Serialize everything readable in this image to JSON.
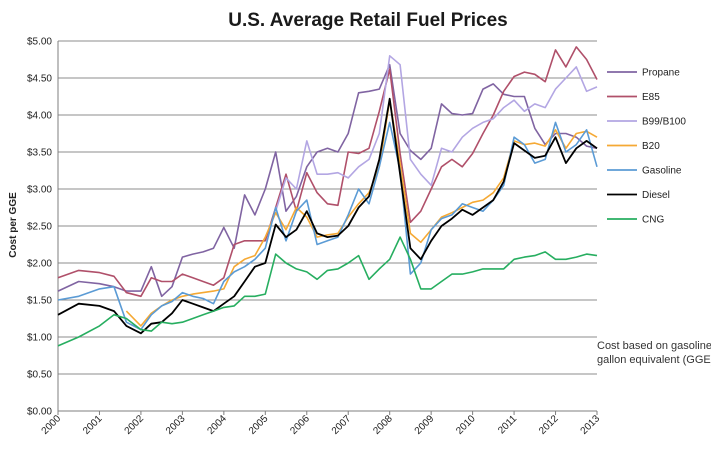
{
  "chart_data": {
    "type": "line",
    "title": "U.S. Average Retail Fuel Prices",
    "xlabel": "",
    "ylabel": "Cost per GGE",
    "xlim": [
      2000,
      2013
    ],
    "ylim": [
      0,
      5
    ],
    "y_ticks": [
      "$0.00",
      "$0.50",
      "$1.00",
      "$1.50",
      "$2.00",
      "$2.50",
      "$3.00",
      "$3.50",
      "$4.00",
      "$4.50",
      "$5.00"
    ],
    "x_ticks": [
      "2000",
      "2001",
      "2002",
      "2003",
      "2004",
      "2005",
      "2006",
      "2007",
      "2008",
      "2009",
      "2010",
      "2011",
      "2012",
      "2013"
    ],
    "grid": "horizontal",
    "legend_position": "right",
    "annotation": [
      "Cost based on gasoline",
      "gallon equivalent (GGE)"
    ],
    "series": [
      {
        "name": "Propane",
        "color": "#8064a2",
        "x": [
          2000,
          2000.5,
          2001,
          2001.35,
          2001.65,
          2002,
          2002.25,
          2002.5,
          2002.75,
          2003,
          2003.25,
          2003.5,
          2003.75,
          2004,
          2004.25,
          2004.5,
          2004.75,
          2005,
          2005.25,
          2005.5,
          2005.75,
          2006,
          2006.25,
          2006.5,
          2006.75,
          2007,
          2007.25,
          2007.5,
          2007.75,
          2008,
          2008.25,
          2008.5,
          2008.75,
          2009,
          2009.25,
          2009.5,
          2009.75,
          2010,
          2010.25,
          2010.5,
          2010.75,
          2011,
          2011.25,
          2011.5,
          2011.75,
          2012,
          2012.25,
          2012.5,
          2012.75,
          2013
        ],
        "y": [
          1.62,
          1.75,
          1.72,
          1.68,
          1.62,
          1.62,
          1.95,
          1.55,
          1.68,
          2.08,
          2.12,
          2.15,
          2.2,
          2.48,
          2.2,
          2.92,
          2.65,
          3.0,
          3.5,
          2.7,
          2.9,
          3.3,
          3.5,
          3.55,
          3.5,
          3.75,
          4.3,
          4.32,
          4.35,
          4.68,
          3.75,
          3.52,
          3.4,
          3.55,
          4.15,
          4.02,
          4.0,
          4.02,
          4.35,
          4.42,
          4.28,
          4.25,
          4.25,
          3.82,
          3.6,
          3.75,
          3.75,
          3.7,
          3.58,
          3.55
        ]
      },
      {
        "name": "E85",
        "color": "#b0506a",
        "x": [
          2000,
          2000.5,
          2001,
          2001.35,
          2001.65,
          2002,
          2002.25,
          2002.5,
          2002.75,
          2003,
          2003.25,
          2003.5,
          2003.75,
          2004,
          2004.25,
          2004.5,
          2004.75,
          2005,
          2005.25,
          2005.5,
          2005.75,
          2006,
          2006.25,
          2006.5,
          2006.75,
          2007,
          2007.25,
          2007.5,
          2007.75,
          2008,
          2008.25,
          2008.5,
          2008.75,
          2009,
          2009.25,
          2009.5,
          2009.75,
          2010,
          2010.25,
          2010.5,
          2010.75,
          2011,
          2011.25,
          2011.5,
          2011.75,
          2012,
          2012.25,
          2012.5,
          2012.75,
          2013
        ],
        "y": [
          1.8,
          1.9,
          1.87,
          1.82,
          1.6,
          1.55,
          1.8,
          1.75,
          1.75,
          1.85,
          1.8,
          1.75,
          1.7,
          1.8,
          2.25,
          2.3,
          2.3,
          2.3,
          2.75,
          3.2,
          2.7,
          3.22,
          2.95,
          2.8,
          2.78,
          3.5,
          3.48,
          3.55,
          4.05,
          4.62,
          3.48,
          2.55,
          2.7,
          3.0,
          3.3,
          3.4,
          3.3,
          3.48,
          3.75,
          4.0,
          4.32,
          4.52,
          4.58,
          4.55,
          4.45,
          4.88,
          4.65,
          4.92,
          4.75,
          4.48
        ]
      },
      {
        "name": "B99/B100",
        "color": "#b3a6e3",
        "x": [
          2000,
          2000.5,
          2001,
          2001.35,
          2001.65,
          2002,
          2002.25,
          2002.5,
          2002.75,
          2003,
          2003.25,
          2003.5,
          2003.75,
          2004,
          2004.25,
          2004.5,
          2004.75,
          2005,
          2005.25,
          2005.5,
          2005.75,
          2006,
          2006.25,
          2006.5,
          2006.75,
          2007,
          2007.25,
          2007.5,
          2007.75,
          2008,
          2008.25,
          2008.5,
          2008.75,
          2009,
          2009.25,
          2009.5,
          2009.75,
          2010,
          2010.25,
          2010.5,
          2010.75,
          2011,
          2011.25,
          2011.5,
          2011.75,
          2012,
          2012.25,
          2012.5,
          2012.75,
          2013
        ],
        "y": [
          null,
          null,
          null,
          null,
          null,
          null,
          null,
          null,
          null,
          null,
          null,
          null,
          null,
          null,
          null,
          null,
          null,
          null,
          2.7,
          3.15,
          3.0,
          3.65,
          3.2,
          3.2,
          3.22,
          3.15,
          3.3,
          3.4,
          3.75,
          4.8,
          4.68,
          3.4,
          3.2,
          3.05,
          3.55,
          3.5,
          3.7,
          3.82,
          3.9,
          3.95,
          4.1,
          4.2,
          4.05,
          4.15,
          4.1,
          4.35,
          4.5,
          4.65,
          4.32,
          4.38
        ]
      },
      {
        "name": "B20",
        "color": "#f5a934",
        "x": [
          2000,
          2000.5,
          2001,
          2001.35,
          2001.65,
          2002,
          2002.25,
          2002.5,
          2002.75,
          2003,
          2003.25,
          2003.5,
          2003.75,
          2004,
          2004.25,
          2004.5,
          2004.75,
          2005,
          2005.25,
          2005.5,
          2005.75,
          2006,
          2006.25,
          2006.5,
          2006.75,
          2007,
          2007.25,
          2007.5,
          2007.75,
          2008,
          2008.25,
          2008.5,
          2008.75,
          2009,
          2009.25,
          2009.5,
          2009.75,
          2010,
          2010.25,
          2010.5,
          2010.75,
          2011,
          2011.25,
          2011.5,
          2011.75,
          2012,
          2012.25,
          2012.5,
          2012.75,
          2013
        ],
        "y": [
          null,
          null,
          null,
          null,
          1.35,
          1.15,
          1.32,
          1.42,
          1.5,
          1.55,
          1.58,
          1.6,
          1.62,
          1.65,
          1.95,
          2.05,
          2.1,
          2.35,
          2.68,
          2.45,
          2.75,
          2.62,
          2.35,
          2.38,
          2.4,
          2.62,
          2.8,
          2.95,
          3.3,
          4.2,
          3.35,
          2.4,
          2.28,
          2.45,
          2.62,
          2.68,
          2.75,
          2.82,
          2.85,
          2.95,
          3.15,
          3.65,
          3.6,
          3.62,
          3.58,
          3.8,
          3.55,
          3.75,
          3.78,
          3.7
        ]
      },
      {
        "name": "Gasoline",
        "color": "#5b9bd5",
        "x": [
          2000,
          2000.5,
          2001,
          2001.35,
          2001.65,
          2002,
          2002.25,
          2002.5,
          2002.75,
          2003,
          2003.25,
          2003.5,
          2003.75,
          2004,
          2004.25,
          2004.5,
          2004.75,
          2005,
          2005.25,
          2005.5,
          2005.75,
          2006,
          2006.25,
          2006.5,
          2006.75,
          2007,
          2007.25,
          2007.5,
          2007.75,
          2008,
          2008.25,
          2008.5,
          2008.75,
          2009,
          2009.25,
          2009.5,
          2009.75,
          2010,
          2010.25,
          2010.5,
          2010.75,
          2011,
          2011.25,
          2011.5,
          2011.75,
          2012,
          2012.25,
          2012.5,
          2012.75,
          2013
        ],
        "y": [
          1.5,
          1.55,
          1.65,
          1.68,
          1.2,
          1.1,
          1.3,
          1.42,
          1.48,
          1.6,
          1.55,
          1.52,
          1.45,
          1.75,
          1.88,
          1.95,
          2.05,
          2.2,
          2.75,
          2.3,
          2.7,
          2.85,
          2.25,
          2.3,
          2.35,
          2.65,
          3.0,
          2.8,
          3.3,
          3.9,
          3.25,
          1.85,
          2.0,
          2.45,
          2.6,
          2.65,
          2.8,
          2.75,
          2.7,
          2.85,
          3.05,
          3.7,
          3.6,
          3.35,
          3.4,
          3.9,
          3.5,
          3.6,
          3.8,
          3.3
        ]
      },
      {
        "name": "Diesel",
        "color": "#000000",
        "x": [
          2000,
          2000.5,
          2001,
          2001.35,
          2001.65,
          2002,
          2002.25,
          2002.5,
          2002.75,
          2003,
          2003.25,
          2003.5,
          2003.75,
          2004,
          2004.25,
          2004.5,
          2004.75,
          2005,
          2005.25,
          2005.5,
          2005.75,
          2006,
          2006.25,
          2006.5,
          2006.75,
          2007,
          2007.25,
          2007.5,
          2007.75,
          2008,
          2008.25,
          2008.5,
          2008.75,
          2009,
          2009.25,
          2009.5,
          2009.75,
          2010,
          2010.25,
          2010.5,
          2010.75,
          2011,
          2011.25,
          2011.5,
          2011.75,
          2012,
          2012.25,
          2012.5,
          2012.75,
          2013
        ],
        "y": [
          1.3,
          1.45,
          1.42,
          1.35,
          1.15,
          1.05,
          1.18,
          1.2,
          1.32,
          1.5,
          1.45,
          1.4,
          1.35,
          1.45,
          1.55,
          1.75,
          1.95,
          2.0,
          2.52,
          2.35,
          2.45,
          2.7,
          2.4,
          2.35,
          2.37,
          2.5,
          2.75,
          2.9,
          3.4,
          4.22,
          3.2,
          2.2,
          2.05,
          2.3,
          2.5,
          2.6,
          2.72,
          2.65,
          2.75,
          2.85,
          3.1,
          3.62,
          3.52,
          3.42,
          3.45,
          3.7,
          3.35,
          3.55,
          3.65,
          3.55
        ]
      },
      {
        "name": "CNG",
        "color": "#27ae60",
        "x": [
          2000,
          2000.5,
          2001,
          2001.35,
          2001.65,
          2002,
          2002.25,
          2002.5,
          2002.75,
          2003,
          2003.25,
          2003.5,
          2003.75,
          2004,
          2004.25,
          2004.5,
          2004.75,
          2005,
          2005.25,
          2005.5,
          2005.75,
          2006,
          2006.25,
          2006.5,
          2006.75,
          2007,
          2007.25,
          2007.5,
          2007.75,
          2008,
          2008.25,
          2008.5,
          2008.75,
          2009,
          2009.25,
          2009.5,
          2009.75,
          2010,
          2010.25,
          2010.5,
          2010.75,
          2011,
          2011.25,
          2011.5,
          2011.75,
          2012,
          2012.25,
          2012.5,
          2012.75,
          2013
        ],
        "y": [
          0.88,
          1.0,
          1.15,
          1.3,
          1.25,
          1.1,
          1.08,
          1.2,
          1.18,
          1.2,
          1.25,
          1.3,
          1.35,
          1.4,
          1.42,
          1.55,
          1.55,
          1.58,
          2.12,
          2.0,
          1.92,
          1.88,
          1.78,
          1.9,
          1.92,
          2.0,
          2.1,
          1.78,
          1.92,
          2.05,
          2.35,
          2.05,
          1.65,
          1.65,
          1.75,
          1.85,
          1.85,
          1.88,
          1.92,
          1.92,
          1.92,
          2.05,
          2.08,
          2.1,
          2.15,
          2.05,
          2.05,
          2.08,
          2.12,
          2.1
        ]
      }
    ]
  }
}
